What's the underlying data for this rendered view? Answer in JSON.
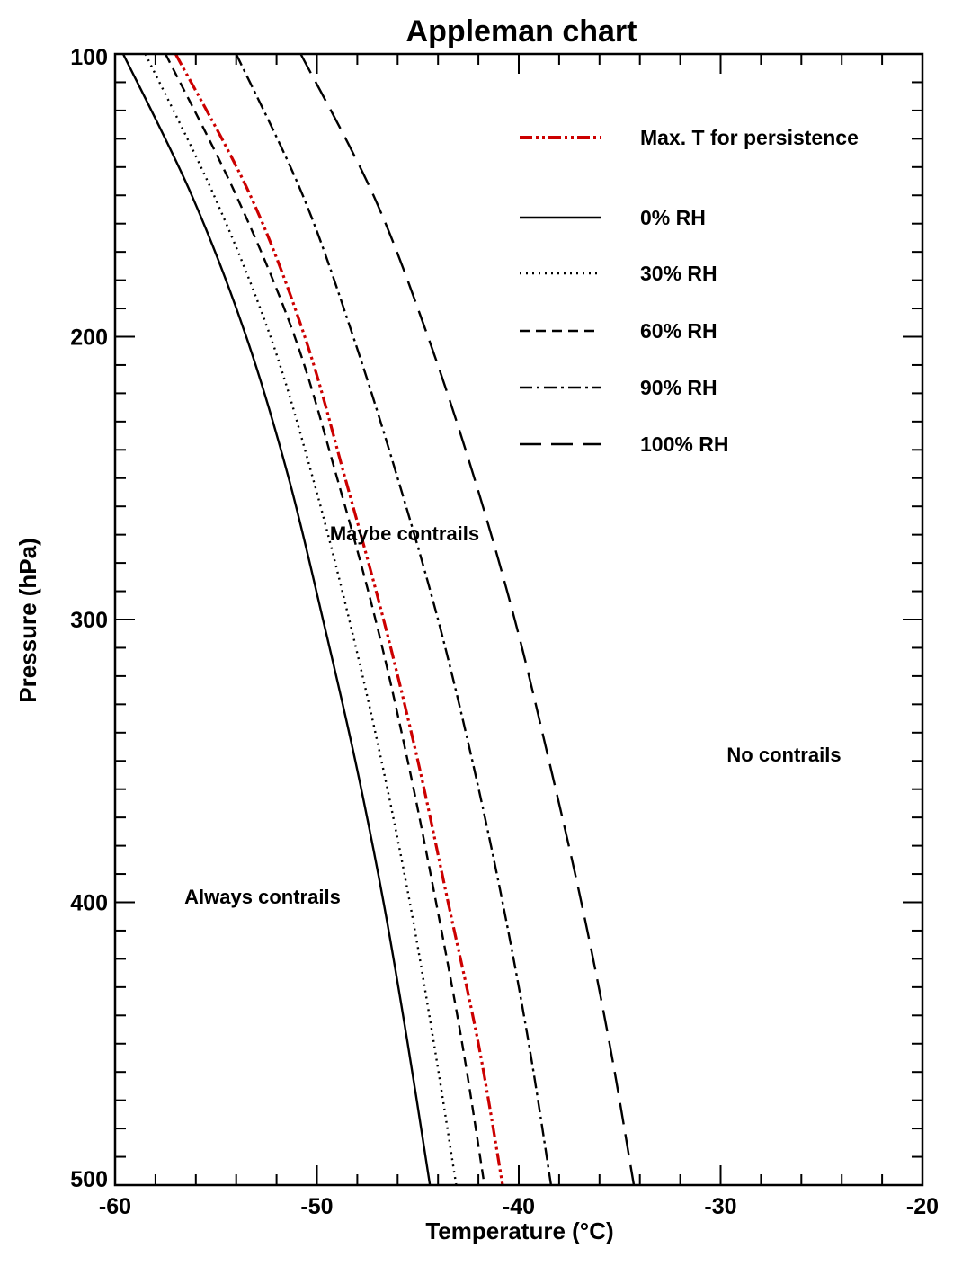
{
  "chart_data": {
    "type": "line",
    "title": "Appleman chart",
    "xlabel": "Temperature (°C)",
    "ylabel": "Pressure (hPa)",
    "xlim": [
      -60,
      -20
    ],
    "ylim": [
      100,
      500
    ],
    "x_reversed": false,
    "y_inverted": true,
    "x_ticks": [
      -60,
      -50,
      -40,
      -30,
      -20
    ],
    "y_ticks": [
      100,
      200,
      300,
      400,
      500
    ],
    "grid": false,
    "legend_position": "top-right",
    "pressure_levels": [
      100,
      150,
      200,
      250,
      300,
      350,
      400,
      450,
      500
    ],
    "series": [
      {
        "name": "Max. T for persistence",
        "color": "#cc0000",
        "dash": "dash-dot-dot",
        "values": [
          -57.0,
          -53.3,
          -50.6,
          -48.6,
          -46.7,
          -45.0,
          -43.5,
          -42.0,
          -40.8
        ]
      },
      {
        "name": "0% RH",
        "color": "#000000",
        "dash": "solid",
        "values": [
          -59.6,
          -56.2,
          -53.5,
          -51.4,
          -49.7,
          -48.1,
          -46.7,
          -45.5,
          -44.4
        ]
      },
      {
        "name": "30% RH",
        "color": "#000000",
        "dash": "dotted",
        "values": [
          -58.5,
          -55.1,
          -52.3,
          -50.2,
          -48.4,
          -46.8,
          -45.4,
          -44.2,
          -43.1
        ]
      },
      {
        "name": "60% RH",
        "color": "#000000",
        "dash": "dashed",
        "values": [
          -57.5,
          -54.0,
          -51.1,
          -49.0,
          -47.1,
          -45.5,
          -44.1,
          -42.8,
          -41.7
        ]
      },
      {
        "name": "90% RH",
        "color": "#000000",
        "dash": "dash-dot",
        "values": [
          -54.0,
          -50.7,
          -48.2,
          -46.0,
          -44.0,
          -42.3,
          -40.8,
          -39.5,
          -38.4
        ]
      },
      {
        "name": "100% RH",
        "color": "#000000",
        "dash": "long-dash",
        "values": [
          -50.8,
          -47.2,
          -44.5,
          -42.2,
          -40.2,
          -38.5,
          -36.9,
          -35.5,
          -34.3
        ]
      }
    ],
    "annotations": [
      "Maybe contrails",
      "Always contrails",
      "No contrails"
    ]
  }
}
